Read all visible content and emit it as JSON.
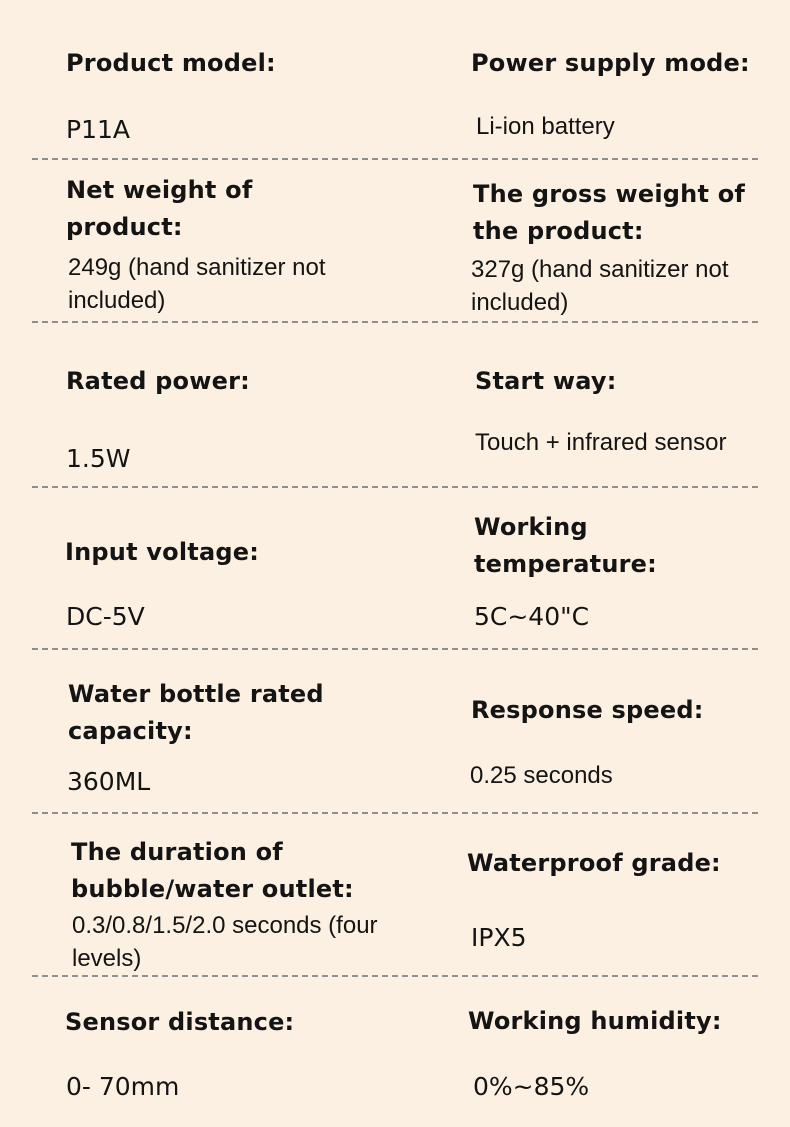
{
  "specs": [
    {
      "label": "Product model:",
      "value": "P11A"
    },
    {
      "label": "Power supply mode:",
      "value": "Li-ion battery"
    },
    {
      "label": "Net weight of\nproduct:",
      "value": "249g (hand sanitizer not\nincluded)"
    },
    {
      "label": "The gross weight of\nthe product:",
      "value": "327g (hand sanitizer not\nincluded)"
    },
    {
      "label": "Rated power:",
      "value": "1.5W"
    },
    {
      "label": "Start way:",
      "value": "Touch + infrared sensor"
    },
    {
      "label": "Input voltage:",
      "value": "DC-5V"
    },
    {
      "label": "Working\ntemperature:",
      "value": "5C~40\"C"
    },
    {
      "label": "Water bottle rated\ncapacity:",
      "value": "360ML"
    },
    {
      "label": "Response speed:",
      "value": "0.25 seconds"
    },
    {
      "label": "The duration of\nbubble/water outlet:",
      "value": "0.3/0.8/1.5/2.0 seconds (four\nlevels)"
    },
    {
      "label": "Waterproof grade:",
      "value": "IPX5"
    },
    {
      "label": "Sensor distance:",
      "value": "0- 70mm"
    },
    {
      "label": "Working humidity:",
      "value": "0%~85%"
    }
  ]
}
